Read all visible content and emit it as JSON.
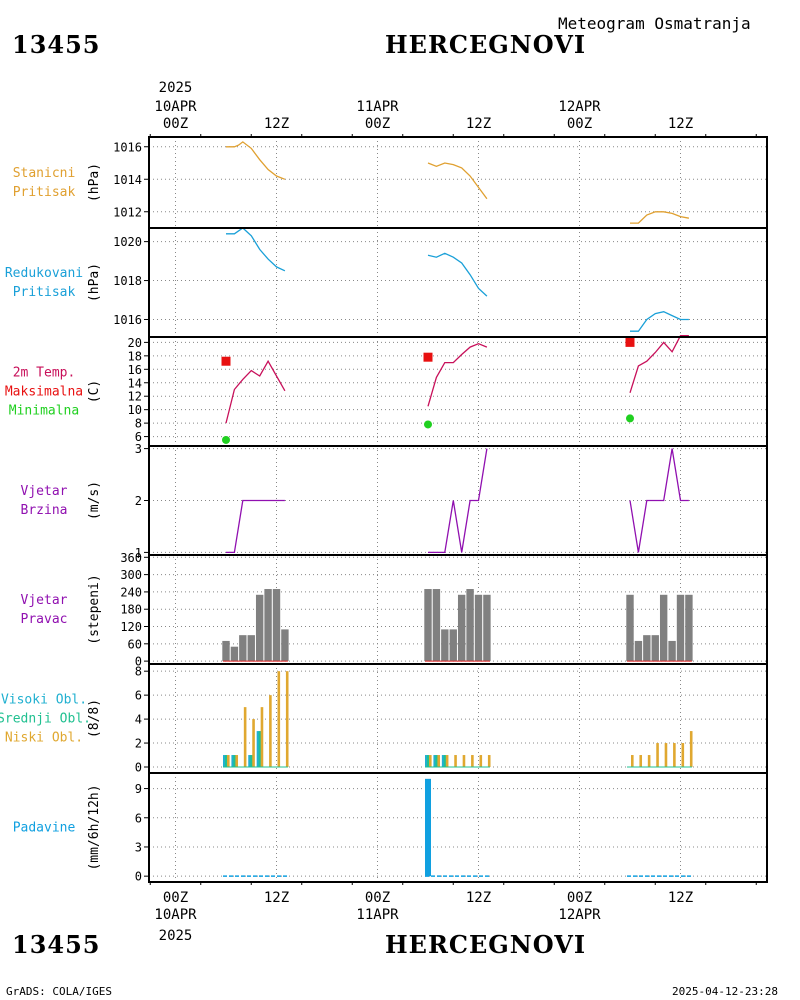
{
  "header": {
    "station_id": "13455",
    "station_name": "HERCEGNOVI",
    "title": "Meteogram Osmatranja"
  },
  "footer": {
    "left": "GrADS: COLA/IGES",
    "right": "2025-04-12-23:28"
  },
  "time_axis": {
    "year": "2025",
    "top_labels": [
      {
        "hour": 0,
        "lines": [
          "10APR",
          "00Z"
        ]
      },
      {
        "hour": 12,
        "lines": [
          "12Z"
        ]
      },
      {
        "hour": 24,
        "lines": [
          "11APR",
          "00Z"
        ]
      },
      {
        "hour": 36,
        "lines": [
          "12Z"
        ]
      },
      {
        "hour": 48,
        "lines": [
          "12APR",
          "00Z"
        ]
      },
      {
        "hour": 60,
        "lines": [
          "12Z"
        ]
      }
    ],
    "bottom_labels": [
      {
        "hour": 0,
        "lines": [
          "00Z",
          "10APR"
        ]
      },
      {
        "hour": 12,
        "lines": [
          "12Z"
        ]
      },
      {
        "hour": 24,
        "lines": [
          "00Z",
          "11APR"
        ]
      },
      {
        "hour": 36,
        "lines": [
          "12Z"
        ]
      },
      {
        "hour": 48,
        "lines": [
          "00Z",
          "12APR"
        ]
      },
      {
        "hour": 60,
        "lines": [
          "12Z"
        ]
      }
    ]
  },
  "colors": {
    "station_pressure": "#e0a030",
    "reduced_pressure": "#1aa0d8",
    "temperature": "#c8105a",
    "tmax": "#e81010",
    "tmin": "#20d020",
    "wind": "#9010b0",
    "wind_dir_bar": "#808080",
    "high_cloud": "#20b0d0",
    "mid_cloud": "#20c090",
    "low_cloud": "#e0a830",
    "precip": "#10a0e0"
  },
  "chart_data": [
    {
      "type": "line",
      "name": "stanicni-pritisak",
      "labels": [
        "Stanicni",
        "Pritisak"
      ],
      "ylabel": "(hPa)",
      "ylim": [
        1011,
        1016.6
      ],
      "yticks": [
        1012,
        1014,
        1016
      ],
      "segments": [
        {
          "x": [
            6,
            7,
            7.5,
            8,
            9,
            10,
            11,
            12,
            13
          ],
          "y": [
            1016,
            1016,
            1016.1,
            1016.3,
            1015.9,
            1015.2,
            1014.6,
            1014.2,
            1014
          ]
        },
        {
          "x": [
            30,
            31,
            32,
            33,
            34,
            35,
            36,
            37
          ],
          "y": [
            1015,
            1014.8,
            1015,
            1014.9,
            1014.7,
            1014.2,
            1013.5,
            1012.8
          ]
        },
        {
          "x": [
            54,
            55,
            56,
            57,
            58,
            59,
            60,
            61
          ],
          "y": [
            1011.3,
            1011.3,
            1011.8,
            1012,
            1012,
            1011.9,
            1011.7,
            1011.6
          ]
        }
      ]
    },
    {
      "type": "line",
      "name": "redukovani-pritisak",
      "labels": [
        "Redukovani",
        "Pritisak"
      ],
      "ylabel": "(hPa)",
      "ylim": [
        1015.1,
        1020.7
      ],
      "yticks": [
        1016,
        1018,
        1020
      ],
      "segments": [
        {
          "x": [
            6,
            7,
            8,
            9,
            10,
            11,
            12,
            13
          ],
          "y": [
            1020.4,
            1020.4,
            1020.7,
            1020.3,
            1019.6,
            1019.1,
            1018.7,
            1018.5
          ]
        },
        {
          "x": [
            30,
            31,
            32,
            33,
            34,
            35,
            36,
            37
          ],
          "y": [
            1019.3,
            1019.2,
            1019.4,
            1019.2,
            1018.9,
            1018.3,
            1017.6,
            1017.2
          ]
        },
        {
          "x": [
            54,
            55,
            56,
            57,
            58,
            59,
            60,
            61
          ],
          "y": [
            1015.4,
            1015.4,
            1016,
            1016.3,
            1016.4,
            1016.2,
            1016,
            1016
          ]
        }
      ]
    },
    {
      "type": "line",
      "name": "temperatura",
      "labels": [
        "2m Temp.",
        "Maksimalna",
        "Minimalna"
      ],
      "ylabel": "(C)",
      "ylim": [
        4.6,
        20.8
      ],
      "yticks": [
        6,
        8,
        10,
        12,
        14,
        16,
        18,
        20
      ],
      "segments": [
        {
          "x": [
            6,
            7,
            8,
            9,
            10,
            11,
            12,
            13
          ],
          "y": [
            8,
            13,
            14.5,
            15.8,
            15,
            17.2,
            15,
            12.8
          ]
        },
        {
          "x": [
            30,
            31,
            32,
            33,
            34,
            35,
            36,
            37
          ],
          "y": [
            10.5,
            14.8,
            17,
            17,
            18.2,
            19.3,
            19.8,
            19.3
          ]
        },
        {
          "x": [
            54,
            55,
            56,
            57,
            58,
            59,
            60,
            61
          ],
          "y": [
            12.5,
            16.5,
            17.2,
            18.5,
            20,
            18.6,
            21,
            21
          ]
        }
      ],
      "tmax": [
        {
          "x": 6,
          "y": 17.2
        },
        {
          "x": 30,
          "y": 17.8
        },
        {
          "x": 54,
          "y": 20
        }
      ],
      "tmin": [
        {
          "x": 6,
          "y": 5.5
        },
        {
          "x": 30,
          "y": 7.8
        },
        {
          "x": 54,
          "y": 8.7
        }
      ]
    },
    {
      "type": "line",
      "name": "vjetar-brzina",
      "labels": [
        "Vjetar",
        "Brzina"
      ],
      "ylabel": "(m/s)",
      "ylim": [
        0.95,
        3.05
      ],
      "yticks": [
        1,
        2,
        3
      ],
      "segments": [
        {
          "x": [
            6,
            7,
            8,
            9,
            10,
            11,
            12,
            13
          ],
          "y": [
            1,
            1,
            2,
            2,
            2,
            2,
            2,
            2
          ]
        },
        {
          "x": [
            30,
            31,
            32,
            33,
            34,
            35,
            36,
            37
          ],
          "y": [
            1,
            1,
            1,
            2,
            1,
            2,
            2,
            3
          ]
        },
        {
          "x": [
            54,
            55,
            56,
            57,
            58,
            59,
            60,
            61
          ],
          "y": [
            2,
            1,
            2,
            2,
            2,
            3,
            2,
            2
          ]
        }
      ]
    },
    {
      "type": "bar",
      "name": "vjetar-pravac",
      "labels": [
        "Vjetar",
        "Pravac"
      ],
      "ylabel": "(stepeni)",
      "ylim": [
        -10,
        368
      ],
      "yticks": [
        0,
        60,
        120,
        180,
        240,
        300,
        360
      ],
      "x": [
        6,
        7,
        8,
        9,
        10,
        11,
        12,
        13,
        30,
        31,
        32,
        33,
        34,
        35,
        36,
        37,
        54,
        55,
        56,
        57,
        58,
        59,
        60,
        61
      ],
      "values": [
        70,
        50,
        90,
        90,
        230,
        250,
        250,
        110,
        250,
        250,
        110,
        110,
        230,
        250,
        230,
        230,
        230,
        70,
        90,
        90,
        230,
        70,
        230,
        230
      ]
    },
    {
      "type": "bar",
      "name": "oblacnost",
      "labels": [
        "Visoki Obl.",
        "Srednji Obl.",
        "Niski Obl."
      ],
      "ylabel": "(8/8)",
      "ylim": [
        -0.5,
        8.6
      ],
      "yticks": [
        0,
        2,
        4,
        6,
        8
      ],
      "x": [
        6,
        7,
        8,
        9,
        10,
        11,
        12,
        13,
        30,
        31,
        32,
        33,
        34,
        35,
        36,
        37,
        54,
        55,
        56,
        57,
        58,
        59,
        60,
        61
      ],
      "series": [
        {
          "name": "Visoki Obl.",
          "values": [
            1,
            1,
            0,
            1,
            3,
            0,
            0,
            0,
            1,
            1,
            1,
            0,
            0,
            0,
            0,
            0,
            0,
            0,
            0,
            0,
            0,
            0,
            0,
            0
          ]
        },
        {
          "name": "Srednji Obl.",
          "values": [
            1,
            1,
            0,
            1,
            3,
            0,
            0,
            0,
            1,
            1,
            1,
            0,
            0,
            0,
            0,
            0,
            0,
            0,
            0,
            0,
            0,
            0,
            0,
            0
          ]
        },
        {
          "name": "Niski Obl.",
          "values": [
            1,
            1,
            5,
            4,
            5,
            6,
            8,
            8,
            1,
            1,
            1,
            1,
            1,
            1,
            1,
            1,
            1,
            1,
            1,
            2,
            2,
            2,
            2,
            3
          ]
        }
      ]
    },
    {
      "type": "bar",
      "name": "padavine",
      "labels": [
        "Padavine"
      ],
      "ylabel": "(mm/6h/12h)",
      "ylim": [
        -0.6,
        10.6
      ],
      "yticks": [
        0,
        3,
        6,
        9
      ],
      "x": [
        30
      ],
      "values": [
        10
      ],
      "trace_segments": [
        [
          6,
          13
        ],
        [
          30,
          37
        ],
        [
          54,
          61
        ]
      ]
    }
  ]
}
